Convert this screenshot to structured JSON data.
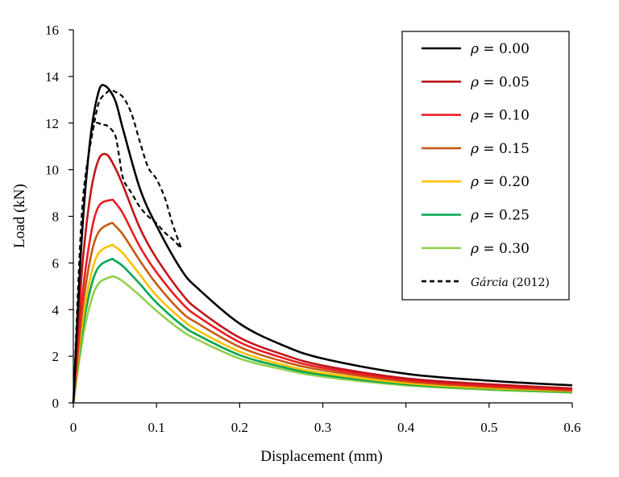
{
  "chart_data": {
    "type": "line",
    "xlabel": "Displacement (mm)",
    "ylabel": "Load (kN)",
    "xlim": [
      0,
      0.6
    ],
    "ylim": [
      0,
      16
    ],
    "xticks": [
      "0",
      "0.1",
      "0.2",
      "0.3",
      "0.4",
      "0.5",
      "0.6"
    ],
    "yticks": [
      "0",
      "2",
      "4",
      "6",
      "8",
      "10",
      "12",
      "14",
      "16"
    ],
    "grid": false,
    "legend_position": "top-right",
    "series": [
      {
        "name": "ρ = 0.00",
        "legend_symbol": "ρ",
        "legend_value": "= 0.00",
        "color": "#000000",
        "dashed": false,
        "x": [
          0,
          0.01,
          0.02,
          0.03,
          0.038,
          0.05,
          0.06,
          0.08,
          0.1,
          0.13,
          0.15,
          0.2,
          0.25,
          0.3,
          0.4,
          0.5,
          0.6
        ],
        "y": [
          0,
          7.0,
          11.2,
          13.3,
          13.6,
          13.0,
          11.7,
          9.2,
          7.6,
          5.7,
          4.9,
          3.4,
          2.5,
          1.9,
          1.25,
          0.95,
          0.75
        ]
      },
      {
        "name": "ρ = 0.05",
        "legend_symbol": "ρ",
        "legend_value": "= 0.05",
        "color": "#c0161b",
        "dashed": false,
        "x": [
          0,
          0.01,
          0.02,
          0.03,
          0.04,
          0.05,
          0.06,
          0.08,
          0.1,
          0.13,
          0.15,
          0.2,
          0.25,
          0.3,
          0.4,
          0.5,
          0.6
        ],
        "y": [
          0,
          5.5,
          8.8,
          10.4,
          10.65,
          10.1,
          9.3,
          7.5,
          6.2,
          4.7,
          4.0,
          2.8,
          2.1,
          1.6,
          1.05,
          0.8,
          0.62
        ]
      },
      {
        "name": "ρ = 0.10",
        "legend_symbol": "ρ",
        "legend_value": "= 0.10",
        "color": "#ed1c24",
        "dashed": false,
        "x": [
          0,
          0.01,
          0.02,
          0.03,
          0.045,
          0.05,
          0.06,
          0.08,
          0.1,
          0.13,
          0.15,
          0.2,
          0.25,
          0.3,
          0.4,
          0.5,
          0.6
        ],
        "y": [
          0,
          4.3,
          7.0,
          8.4,
          8.7,
          8.6,
          8.1,
          6.7,
          5.6,
          4.3,
          3.7,
          2.6,
          1.95,
          1.5,
          0.98,
          0.73,
          0.57
        ]
      },
      {
        "name": "ρ = 0.15",
        "legend_symbol": "ρ",
        "legend_value": "= 0.15",
        "color": "#c55a11",
        "dashed": false,
        "x": [
          0,
          0.01,
          0.02,
          0.03,
          0.045,
          0.05,
          0.06,
          0.08,
          0.1,
          0.13,
          0.15,
          0.2,
          0.25,
          0.3,
          0.4,
          0.5,
          0.6
        ],
        "y": [
          0,
          3.7,
          6.1,
          7.3,
          7.7,
          7.6,
          7.2,
          6.1,
          5.1,
          3.9,
          3.4,
          2.4,
          1.8,
          1.4,
          0.92,
          0.68,
          0.53
        ]
      },
      {
        "name": "ρ = 0.20",
        "legend_symbol": "ρ",
        "legend_value": "= 0.20",
        "color": "#ffc000",
        "dashed": false,
        "x": [
          0,
          0.01,
          0.02,
          0.03,
          0.045,
          0.05,
          0.06,
          0.08,
          0.1,
          0.13,
          0.15,
          0.2,
          0.25,
          0.3,
          0.4,
          0.5,
          0.6
        ],
        "y": [
          0,
          3.2,
          5.3,
          6.4,
          6.75,
          6.7,
          6.4,
          5.5,
          4.6,
          3.6,
          3.1,
          2.2,
          1.65,
          1.28,
          0.85,
          0.63,
          0.5
        ]
      },
      {
        "name": "ρ = 0.25",
        "legend_symbol": "ρ",
        "legend_value": "= 0.25",
        "color": "#00a651",
        "dashed": false,
        "x": [
          0,
          0.01,
          0.02,
          0.03,
          0.045,
          0.05,
          0.06,
          0.08,
          0.1,
          0.13,
          0.15,
          0.2,
          0.25,
          0.3,
          0.4,
          0.5,
          0.6
        ],
        "y": [
          0,
          2.9,
          4.8,
          5.8,
          6.15,
          6.1,
          5.85,
          5.1,
          4.3,
          3.35,
          2.9,
          2.05,
          1.55,
          1.2,
          0.8,
          0.6,
          0.47
        ]
      },
      {
        "name": "ρ = 0.30",
        "legend_symbol": "ρ",
        "legend_value": "= 0.30",
        "color": "#92d050",
        "dashed": false,
        "x": [
          0,
          0.01,
          0.02,
          0.03,
          0.045,
          0.05,
          0.06,
          0.08,
          0.1,
          0.13,
          0.15,
          0.2,
          0.25,
          0.3,
          0.4,
          0.5,
          0.6
        ],
        "y": [
          0,
          2.5,
          4.2,
          5.1,
          5.4,
          5.4,
          5.2,
          4.6,
          3.95,
          3.1,
          2.7,
          1.9,
          1.45,
          1.12,
          0.75,
          0.56,
          0.44
        ]
      },
      {
        "name": "Gárcia (2012)",
        "legend_symbol": "Gárcia",
        "legend_value": "(2012)",
        "color": "#000000",
        "dashed": true,
        "x": [
          0,
          0.01,
          0.02,
          0.025,
          0.03,
          0.035,
          0.04,
          0.05,
          0.055,
          0.06,
          0.07,
          0.08,
          0.09,
          0.1,
          0.11,
          0.12,
          0.13
        ],
        "y": [
          0,
          8.0,
          11.0,
          11.9,
          12.0,
          11.9,
          11.9,
          11.5,
          10.6,
          9.6,
          9.0,
          8.4,
          8.0,
          7.7,
          7.3,
          7.0,
          6.6
        ]
      },
      {
        "name": "",
        "color": "#000000",
        "dashed": true,
        "in_legend": false,
        "x": [
          0.02,
          0.03,
          0.04,
          0.045,
          0.05,
          0.06,
          0.07,
          0.08,
          0.09,
          0.1,
          0.11,
          0.115,
          0.12,
          0.13
        ],
        "y": [
          11.0,
          12.8,
          13.3,
          13.4,
          13.35,
          13.1,
          12.4,
          11.2,
          10.1,
          9.6,
          8.8,
          8.2,
          7.6,
          6.6
        ]
      }
    ]
  }
}
